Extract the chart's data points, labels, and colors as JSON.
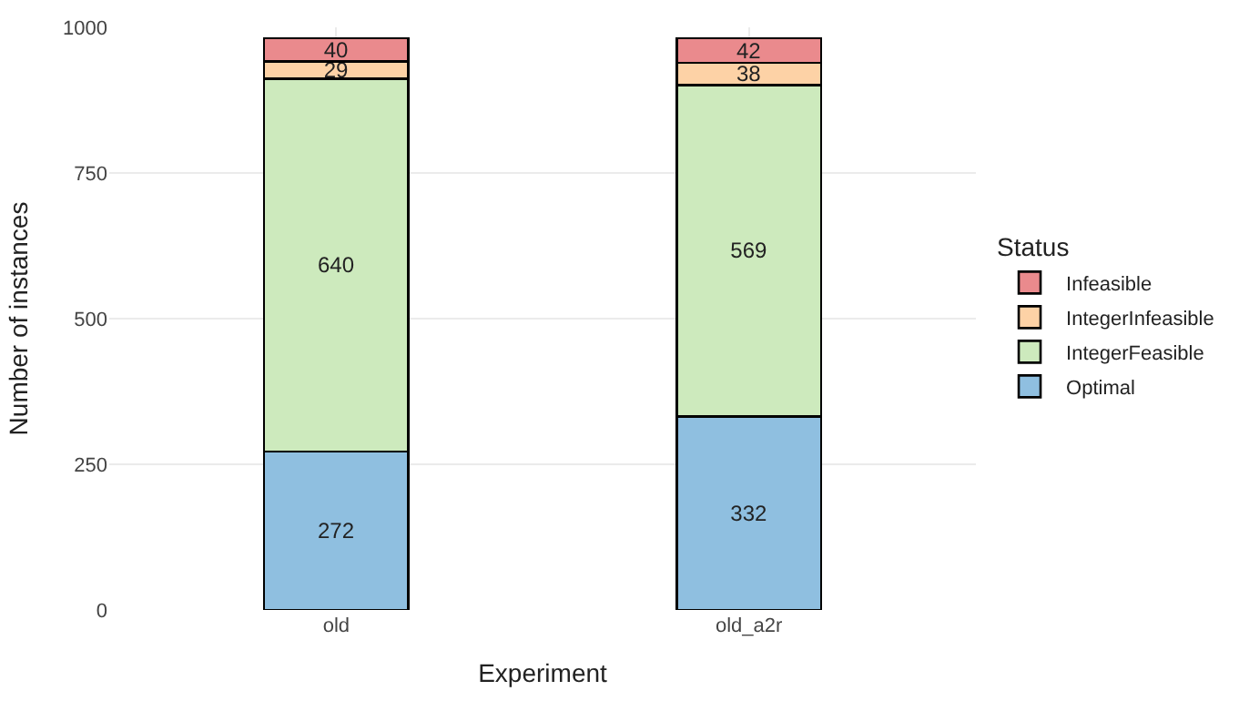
{
  "chart_data": {
    "type": "bar",
    "stacked": true,
    "xlabel": "Experiment",
    "ylabel": "Number of instances",
    "legend_title": "Status",
    "categories": [
      "old",
      "old_a2r"
    ],
    "series": [
      {
        "name": "Optimal",
        "color": "#8fbfe0",
        "values": [
          272,
          332
        ]
      },
      {
        "name": "IntegerFeasible",
        "color": "#cdeabd",
        "values": [
          640,
          569
        ]
      },
      {
        "name": "IntegerInfeasible",
        "color": "#fdd2a6",
        "values": [
          29,
          38
        ]
      },
      {
        "name": "Infeasible",
        "color": "#ea8a8d",
        "values": [
          40,
          42
        ]
      }
    ],
    "ylim": [
      0,
      1000
    ],
    "yticks": [
      0,
      250,
      500,
      750,
      1000
    ],
    "grid": true,
    "legend": "right",
    "data_labels": true
  }
}
